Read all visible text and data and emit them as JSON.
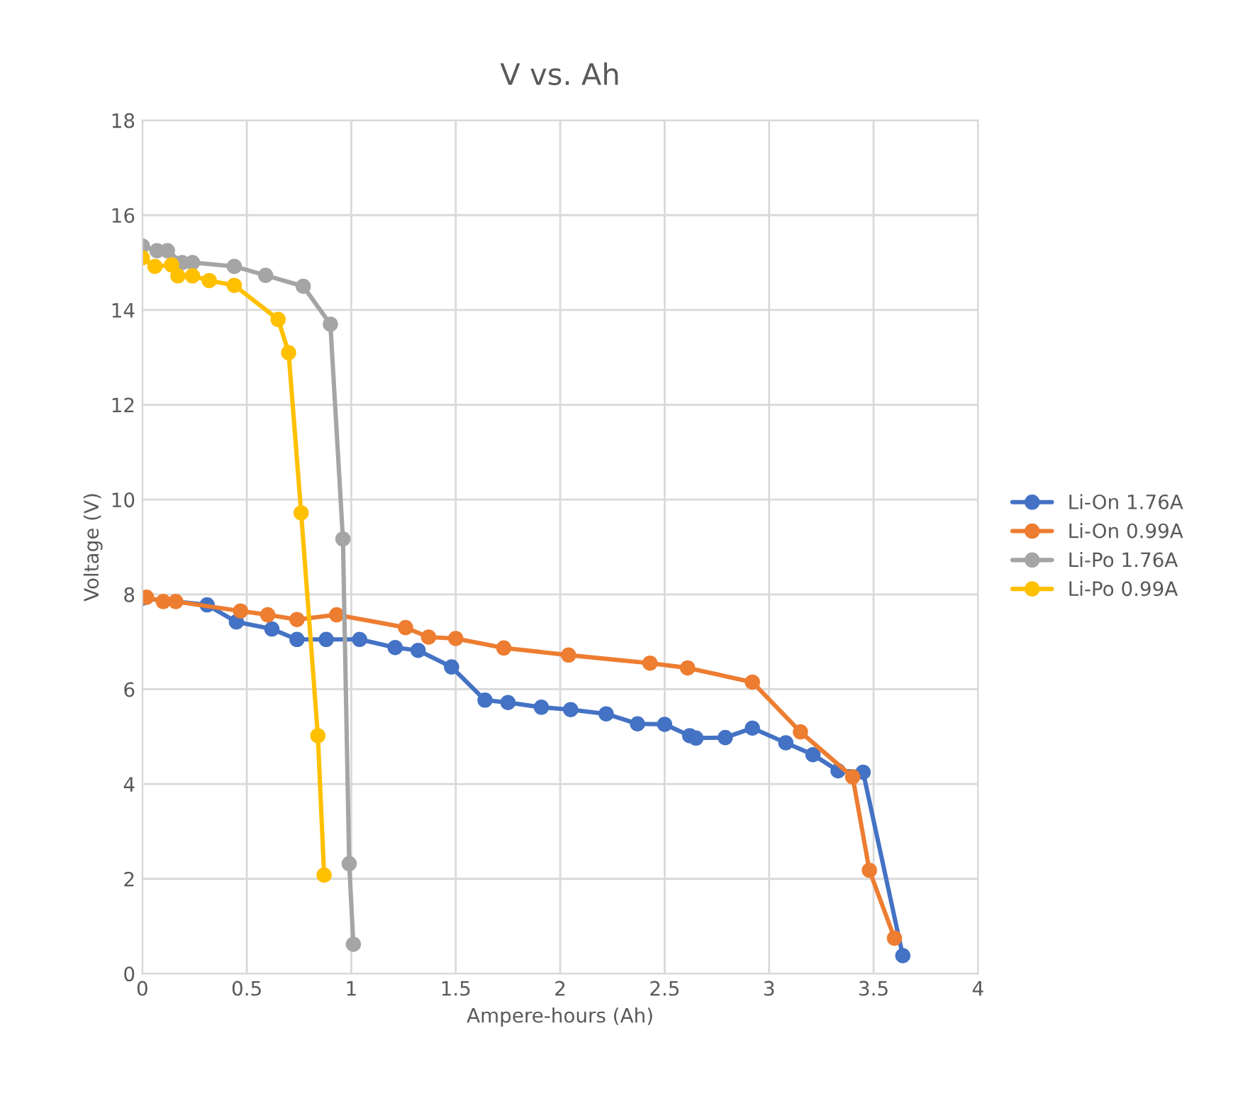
{
  "chart_data": {
    "type": "line",
    "title": "V vs. Ah",
    "xlabel": "Ampere-hours (Ah)",
    "ylabel": "Voltage (V)",
    "xlim": [
      0,
      4
    ],
    "xticks": [
      0,
      0.5,
      1,
      1.5,
      2,
      2.5,
      3,
      3.5,
      4
    ],
    "ylim": [
      0,
      18
    ],
    "yticks": [
      0,
      2,
      4,
      6,
      8,
      10,
      12,
      14,
      16,
      18
    ],
    "grid": true,
    "legend": "right",
    "marker": "circle",
    "line_style": "solid",
    "series": [
      {
        "name": "Li-On 1.76A",
        "color": "#4472c4",
        "x": [
          0.0,
          0.31,
          0.45,
          0.62,
          0.74,
          0.88,
          1.04,
          1.21,
          1.32,
          1.48,
          1.64,
          1.75,
          1.91,
          2.05,
          2.22,
          2.37,
          2.5,
          2.62,
          2.65,
          2.79,
          2.92,
          3.08,
          3.21,
          3.33,
          3.45,
          3.64
        ],
        "values": [
          7.92,
          7.78,
          7.42,
          7.27,
          7.05,
          7.05,
          7.05,
          6.88,
          6.82,
          6.47,
          5.77,
          5.72,
          5.62,
          5.57,
          5.48,
          5.27,
          5.26,
          5.02,
          4.97,
          4.98,
          5.18,
          4.87,
          4.62,
          4.28,
          4.25,
          0.38
        ]
      },
      {
        "name": "Li-On 0.99A",
        "color": "#ed7d31",
        "x": [
          0.02,
          0.1,
          0.16,
          0.47,
          0.6,
          0.74,
          0.93,
          1.26,
          1.37,
          1.5,
          1.73,
          2.04,
          2.43,
          2.61,
          2.92,
          3.15,
          3.4,
          3.48,
          3.6
        ],
        "values": [
          7.94,
          7.85,
          7.85,
          7.65,
          7.57,
          7.47,
          7.57,
          7.3,
          7.1,
          7.07,
          6.87,
          6.72,
          6.55,
          6.45,
          6.15,
          5.1,
          4.15,
          2.18,
          0.75
        ]
      },
      {
        "name": "Li-Po 1.76A",
        "color": "#a5a5a5",
        "x": [
          0.0,
          0.07,
          0.12,
          0.19,
          0.24,
          0.44,
          0.59,
          0.77,
          0.9,
          0.96,
          0.99,
          1.01
        ],
        "values": [
          15.35,
          15.25,
          15.25,
          15.0,
          15.0,
          14.92,
          14.73,
          14.5,
          13.7,
          9.17,
          2.32,
          0.62
        ]
      },
      {
        "name": "Li-Po 0.99A",
        "color": "#ffc000",
        "x": [
          0.0,
          0.06,
          0.14,
          0.17,
          0.24,
          0.32,
          0.44,
          0.65,
          0.7,
          0.76,
          0.84,
          0.87
        ],
        "values": [
          15.1,
          14.92,
          14.95,
          14.72,
          14.72,
          14.62,
          14.52,
          13.8,
          13.1,
          9.72,
          5.02,
          2.08
        ]
      }
    ]
  }
}
